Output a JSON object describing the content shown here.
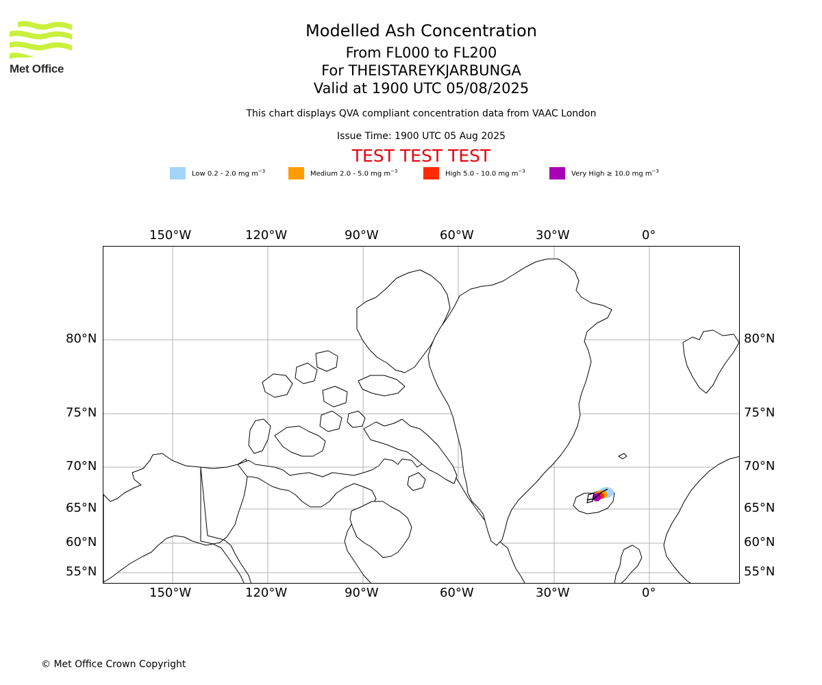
{
  "header": {
    "logo_text": "Met Office",
    "title": "Modelled Ash Concentration",
    "flight_levels": "From FL000 to FL200",
    "volcano": "For THEISTAREYKJARBUNGA",
    "valid_time": "Valid at 1900 UTC 05/08/2025",
    "subtitle": "This chart displays QVA compliant concentration data from VAAC London",
    "issue_time": "Issue Time: 1900 UTC 05 Aug 2025",
    "test_banner": "TEST TEST TEST"
  },
  "legend": [
    {
      "label": "Low 0.2 - 2.0 mg m",
      "unit_exp": "−3",
      "color": "#a3d4fc"
    },
    {
      "label": "Medium 2.0 - 5.0 mg m",
      "unit_exp": "−3",
      "color": "#ff9c00"
    },
    {
      "label": "High 5.0 - 10.0 mg m",
      "unit_exp": "−3",
      "color": "#ff2a00"
    },
    {
      "label": "Very High  ≥  10.0 mg m",
      "unit_exp": "−3",
      "color": "#a800b4"
    }
  ],
  "map": {
    "lon_labels": [
      "150°W",
      "120°W",
      "90°W",
      "60°W",
      "30°W",
      "0°"
    ],
    "lat_labels": [
      "80°N",
      "75°N",
      "70°N",
      "65°N",
      "60°N",
      "55°N"
    ],
    "grid_color": "#b0b0b0",
    "coastline_color": "#000000"
  },
  "footer": {
    "copyright": "© Met Office Crown Copyright"
  }
}
